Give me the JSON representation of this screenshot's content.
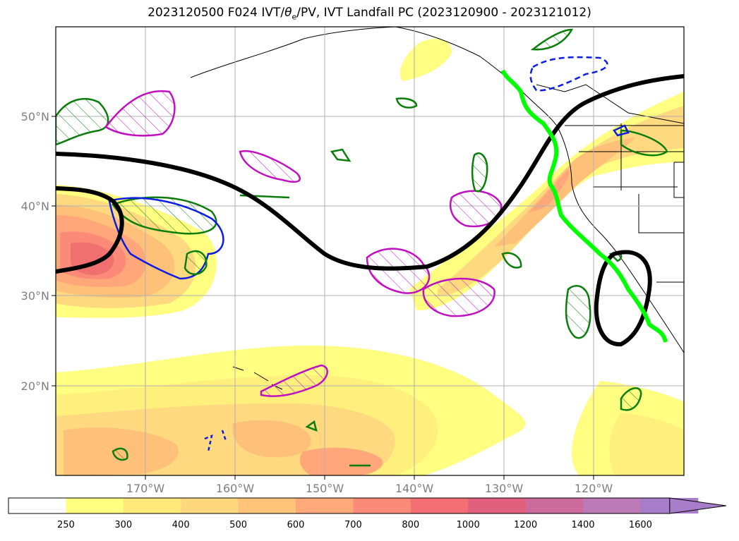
{
  "title": {
    "run": "2023120500 F024 IVT/",
    "theta": "θ",
    "theta_sub": "e",
    "rest": "/PV, IVT Landfall PC (2023120900 - 2023121012)"
  },
  "map": {
    "lat_labels": [
      "50°N",
      "40°N",
      "30°N",
      "20°N"
    ],
    "lon_labels": [
      "170°W",
      "160°W",
      "150°W",
      "140°W",
      "130°W",
      "120°W"
    ],
    "colors": {
      "ivt_250": "#fffe80",
      "ivt_300": "#fff07e",
      "ivt_400": "#ffd980",
      "ivt_500": "#ffc07a",
      "ivt_600": "#ffa77a",
      "ivt_700": "#fc8a78",
      "ivt_800": "#f07070",
      "theta_contour": "#000000",
      "pv_green": "#0b7d0b",
      "pv_magenta": "#c010c0",
      "pv_blue": "#0a1de0",
      "landfall_path": "#00ff00"
    }
  },
  "colorbar": {
    "labels": [
      "250",
      "300",
      "400",
      "500",
      "600",
      "700",
      "800",
      "1000",
      "1200",
      "1400",
      "1600"
    ],
    "colors": [
      "#ffffff",
      "#ffff80",
      "#ffe97a",
      "#ffd87d",
      "#ffc47a",
      "#ffa97a",
      "#fb8b79",
      "#f36f73",
      "#e0607e",
      "#cc6c9c",
      "#bc7ab8",
      "#a77cc8"
    ]
  }
}
